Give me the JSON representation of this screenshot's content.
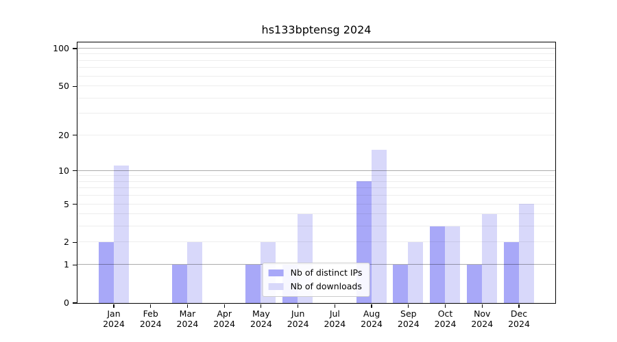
{
  "title": "hs133bptensg 2024",
  "chart_data": {
    "type": "bar",
    "title": "hs133bptensg 2024",
    "categories": [
      "Jan",
      "Feb",
      "Mar",
      "Apr",
      "May",
      "Jun",
      "Jul",
      "Aug",
      "Sep",
      "Oct",
      "Nov",
      "Dec"
    ],
    "category_year": "2024",
    "series": [
      {
        "name": "Nb of distinct IPs",
        "color": "#a8a8f8",
        "values": [
          2,
          0,
          1,
          0,
          1,
          1,
          0,
          8,
          1,
          3,
          1,
          2
        ]
      },
      {
        "name": "Nb of downloads",
        "color": "#d8d8fa",
        "values": [
          11,
          0,
          2,
          0,
          2,
          4,
          0,
          15,
          2,
          3,
          4,
          5
        ]
      }
    ],
    "scale": "log1p",
    "ylim": [
      0,
      112
    ],
    "yticks": [
      0,
      1,
      2,
      5,
      10,
      20,
      50,
      100
    ],
    "grid_major": [
      1,
      10,
      100
    ],
    "grid_minor": [
      2,
      3,
      4,
      5,
      6,
      7,
      8,
      9,
      20,
      30,
      40,
      50,
      60,
      70,
      80,
      90
    ],
    "grid": true,
    "legend_position": "lower center inside",
    "colors": {
      "spine": "#000000",
      "grid_major": "rgba(0,0,0,0.33)",
      "grid_minor": "rgba(0,0,0,0.07)"
    }
  }
}
